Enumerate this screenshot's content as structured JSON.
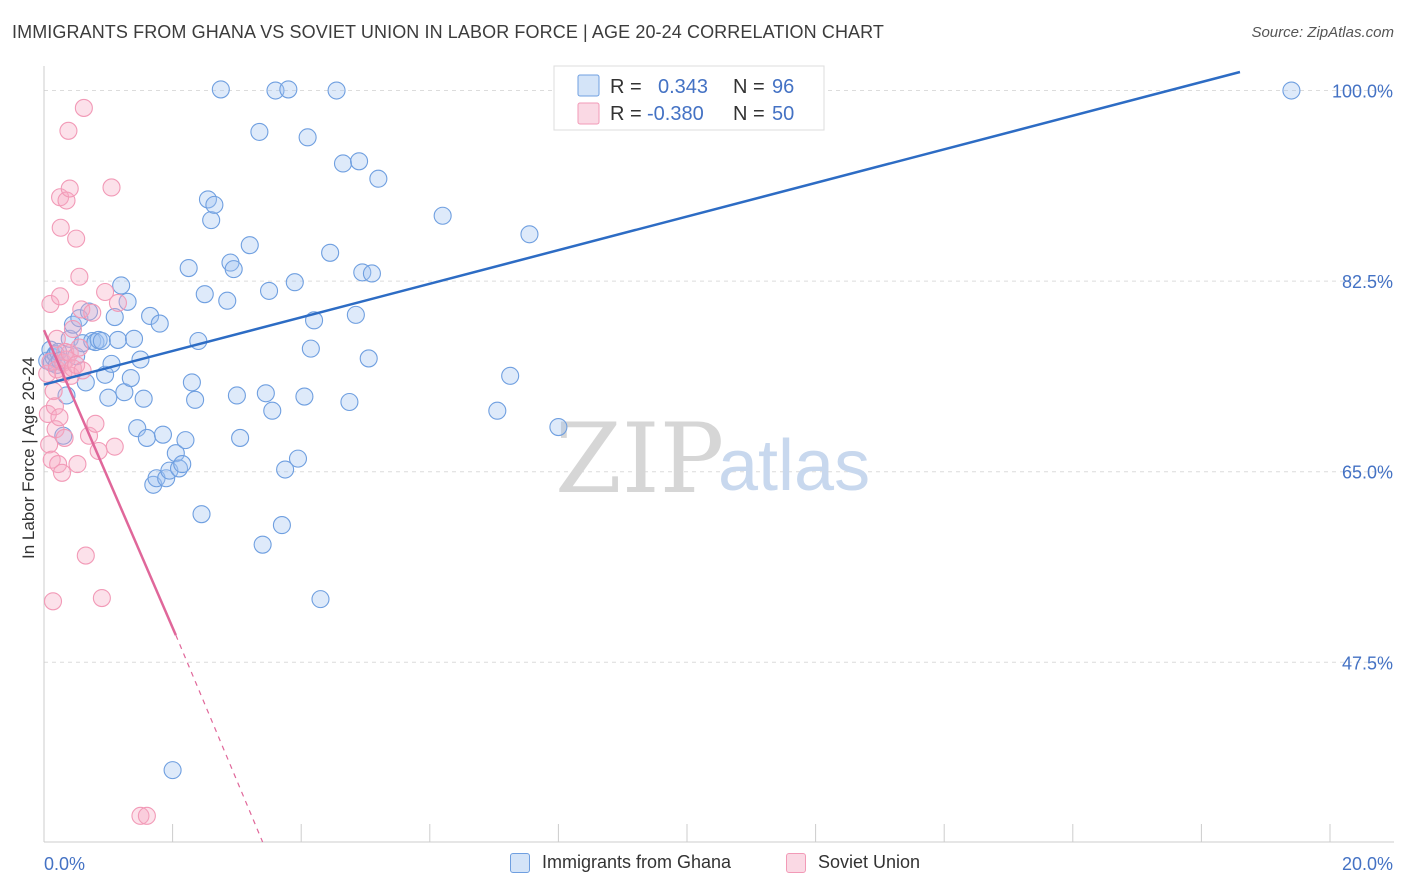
{
  "header": {
    "title": "IMMIGRANTS FROM GHANA VS SOVIET UNION IN LABOR FORCE | AGE 20-24 CORRELATION CHART",
    "source": "Source: ZipAtlas.com"
  },
  "watermark": {
    "zip": "ZIP",
    "atlas": "atlas"
  },
  "legend_box": {
    "rows": [
      {
        "r_label": "R =",
        "r_value": "0.343",
        "n_label": "N =",
        "n_value": "96",
        "color": "#6f9fe0"
      },
      {
        "r_label": "R =",
        "r_value": "-0.380",
        "n_label": "N =",
        "n_value": "50",
        "color": "#f29ab7"
      }
    ]
  },
  "chart_data": {
    "type": "scatter",
    "title": "IMMIGRANTS FROM GHANA VS SOVIET UNION IN LABOR FORCE | AGE 20-24 CORRELATION CHART",
    "xlabel": "",
    "ylabel": "In Labor Force | Age 20-24",
    "xlim": [
      0,
      20
    ],
    "ylim": [
      31,
      101.7
    ],
    "x_tick_labels": [
      "0.0%",
      "20.0%"
    ],
    "y_ticks": [
      47.5,
      65.0,
      82.5,
      100.0
    ],
    "y_tick_labels": [
      "47.5%",
      "65.0%",
      "82.5%",
      "100.0%"
    ],
    "grid": true,
    "legend_position": "bottom",
    "series": [
      {
        "name": "Immigrants from Ghana",
        "color": "#6f9fe0",
        "fill": "rgba(160,195,240,0.35)",
        "trend": {
          "x": [
            0.0,
            18.6
          ],
          "y": [
            73.0,
            101.7
          ],
          "dashed_to": null
        },
        "points": [
          [
            0.05,
            75.2
          ],
          [
            0.1,
            76.2
          ],
          [
            0.12,
            75.0
          ],
          [
            0.15,
            75.5
          ],
          [
            0.18,
            75.8
          ],
          [
            0.2,
            74.8
          ],
          [
            0.22,
            76.0
          ],
          [
            0.25,
            75.2
          ],
          [
            0.3,
            68.3
          ],
          [
            0.35,
            72.0
          ],
          [
            0.4,
            77.2
          ],
          [
            0.45,
            78.5
          ],
          [
            0.5,
            75.6
          ],
          [
            0.55,
            79.1
          ],
          [
            0.6,
            76.8
          ],
          [
            0.65,
            73.2
          ],
          [
            0.7,
            79.7
          ],
          [
            0.75,
            77.0
          ],
          [
            0.8,
            76.9
          ],
          [
            0.85,
            77.1
          ],
          [
            0.9,
            77.0
          ],
          [
            0.95,
            73.9
          ],
          [
            1.0,
            71.8
          ],
          [
            1.05,
            74.9
          ],
          [
            1.1,
            79.2
          ],
          [
            1.15,
            77.1
          ],
          [
            1.2,
            82.1
          ],
          [
            1.25,
            72.3
          ],
          [
            1.3,
            80.6
          ],
          [
            1.35,
            73.6
          ],
          [
            1.4,
            77.2
          ],
          [
            1.45,
            69.0
          ],
          [
            1.5,
            75.3
          ],
          [
            1.55,
            71.7
          ],
          [
            1.6,
            68.1
          ],
          [
            1.65,
            79.3
          ],
          [
            1.7,
            63.8
          ],
          [
            1.75,
            64.4
          ],
          [
            1.8,
            78.6
          ],
          [
            1.85,
            68.4
          ],
          [
            1.9,
            64.4
          ],
          [
            1.95,
            65.1
          ],
          [
            2.0,
            37.6
          ],
          [
            2.05,
            66.7
          ],
          [
            2.1,
            65.3
          ],
          [
            2.15,
            65.7
          ],
          [
            2.2,
            67.9
          ],
          [
            2.25,
            83.7
          ],
          [
            2.3,
            73.2
          ],
          [
            2.35,
            71.6
          ],
          [
            2.4,
            77.0
          ],
          [
            2.45,
            61.1
          ],
          [
            2.5,
            81.3
          ],
          [
            2.55,
            90.0
          ],
          [
            2.6,
            88.1
          ],
          [
            2.65,
            89.5
          ],
          [
            2.75,
            100.1
          ],
          [
            2.85,
            80.7
          ],
          [
            2.9,
            84.2
          ],
          [
            2.95,
            83.6
          ],
          [
            3.0,
            72.0
          ],
          [
            3.05,
            68.1
          ],
          [
            3.2,
            85.8
          ],
          [
            3.35,
            96.2
          ],
          [
            3.45,
            72.2
          ],
          [
            3.5,
            81.6
          ],
          [
            3.55,
            70.6
          ],
          [
            3.6,
            100.0
          ],
          [
            3.7,
            60.1
          ],
          [
            3.75,
            65.2
          ],
          [
            3.8,
            100.1
          ],
          [
            3.9,
            82.4
          ],
          [
            3.4,
            58.3
          ],
          [
            3.95,
            66.2
          ],
          [
            4.05,
            71.9
          ],
          [
            4.1,
            95.7
          ],
          [
            4.15,
            76.3
          ],
          [
            4.2,
            78.9
          ],
          [
            4.3,
            53.3
          ],
          [
            4.45,
            85.1
          ],
          [
            4.55,
            100.0
          ],
          [
            4.65,
            93.3
          ],
          [
            4.75,
            71.4
          ],
          [
            4.85,
            79.4
          ],
          [
            4.9,
            93.5
          ],
          [
            4.95,
            83.3
          ],
          [
            5.05,
            75.4
          ],
          [
            5.1,
            83.2
          ],
          [
            5.2,
            91.9
          ],
          [
            6.2,
            88.5
          ],
          [
            7.05,
            70.6
          ],
          [
            7.25,
            73.8
          ],
          [
            7.55,
            86.8
          ],
          [
            8.0,
            69.1
          ],
          [
            9.2,
            100.0
          ],
          [
            19.4,
            100.0
          ]
        ]
      },
      {
        "name": "Soviet Union",
        "color": "#f29ab7",
        "fill": "rgba(245,170,195,0.35)",
        "trend": {
          "x": [
            0.0,
            2.05
          ],
          "y": [
            78.0,
            50.0
          ],
          "dashed_to": [
            3.4,
            31.0
          ]
        },
        "points": [
          [
            0.05,
            74.0
          ],
          [
            0.06,
            70.3
          ],
          [
            0.08,
            67.5
          ],
          [
            0.1,
            75.1
          ],
          [
            0.1,
            80.4
          ],
          [
            0.12,
            66.1
          ],
          [
            0.14,
            53.1
          ],
          [
            0.15,
            72.4
          ],
          [
            0.17,
            71.0
          ],
          [
            0.18,
            68.9
          ],
          [
            0.2,
            74.4
          ],
          [
            0.2,
            77.2
          ],
          [
            0.22,
            65.7
          ],
          [
            0.24,
            70.0
          ],
          [
            0.25,
            81.1
          ],
          [
            0.25,
            90.2
          ],
          [
            0.26,
            87.4
          ],
          [
            0.28,
            64.9
          ],
          [
            0.3,
            75.0
          ],
          [
            0.3,
            74.0
          ],
          [
            0.32,
            68.1
          ],
          [
            0.33,
            76.0
          ],
          [
            0.35,
            89.9
          ],
          [
            0.35,
            75.3
          ],
          [
            0.38,
            96.3
          ],
          [
            0.4,
            91.0
          ],
          [
            0.4,
            75.9
          ],
          [
            0.42,
            73.8
          ],
          [
            0.45,
            78.1
          ],
          [
            0.45,
            74.5
          ],
          [
            0.5,
            86.4
          ],
          [
            0.5,
            74.8
          ],
          [
            0.52,
            65.7
          ],
          [
            0.55,
            82.9
          ],
          [
            0.55,
            76.4
          ],
          [
            0.58,
            79.9
          ],
          [
            0.6,
            74.3
          ],
          [
            0.62,
            98.4
          ],
          [
            0.65,
            57.3
          ],
          [
            0.7,
            68.3
          ],
          [
            0.75,
            79.6
          ],
          [
            0.8,
            69.4
          ],
          [
            0.85,
            66.9
          ],
          [
            0.9,
            53.4
          ],
          [
            0.95,
            81.5
          ],
          [
            1.05,
            91.1
          ],
          [
            1.1,
            67.3
          ],
          [
            1.15,
            80.5
          ],
          [
            1.5,
            33.4
          ],
          [
            1.6,
            33.4
          ]
        ]
      }
    ]
  },
  "bottom_legend": {
    "items": [
      {
        "label": "Immigrants from Ghana",
        "color": "#6f9fe0"
      },
      {
        "label": "Soviet Union",
        "color": "#f29ab7"
      }
    ]
  }
}
